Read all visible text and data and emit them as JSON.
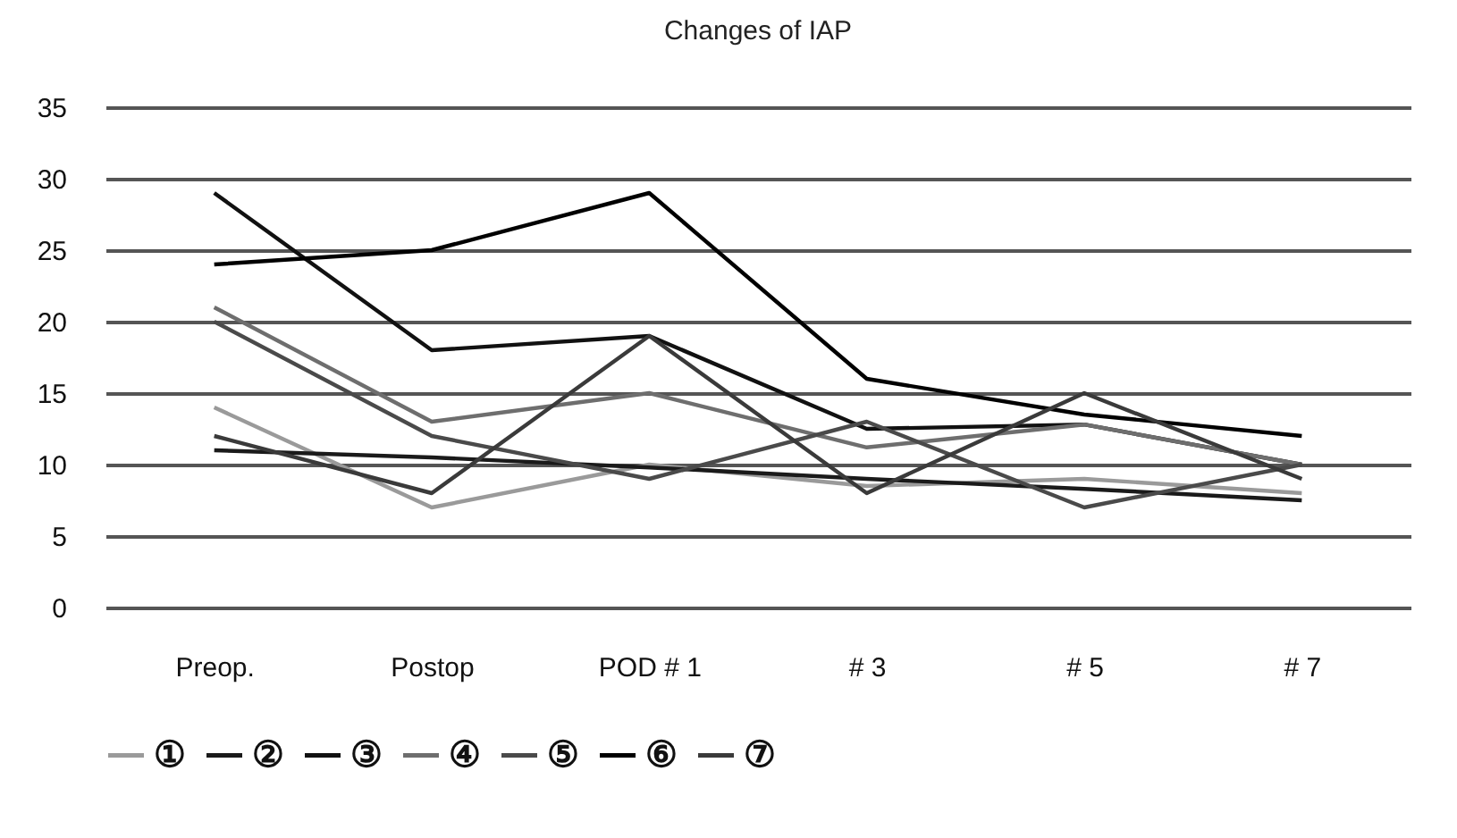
{
  "chart_data": {
    "type": "line",
    "title": "Changes of IAP",
    "categories": [
      "Preop.",
      "Postop",
      "POD # 1",
      "# 3",
      "# 5",
      "# 7"
    ],
    "series": [
      {
        "name": "①",
        "color": "#9a9a9a",
        "values": [
          14,
          7,
          10,
          8.5,
          9,
          8
        ]
      },
      {
        "name": "②",
        "color": "#1a1a1a",
        "values": [
          11,
          10.5,
          9.8,
          9,
          8.3,
          7.5
        ]
      },
      {
        "name": "③",
        "color": "#111111",
        "values": [
          29,
          18,
          19,
          12.5,
          12.8,
          10
        ]
      },
      {
        "name": "④",
        "color": "#6e6e6e",
        "values": [
          21,
          13,
          15,
          11.2,
          12.8,
          10
        ]
      },
      {
        "name": "⑤",
        "color": "#4a4a4a",
        "values": [
          20,
          12,
          9,
          13,
          7,
          10
        ]
      },
      {
        "name": "⑥",
        "color": "#000000",
        "values": [
          24,
          25,
          29,
          16,
          13.5,
          12
        ]
      },
      {
        "name": "⑦",
        "color": "#3a3a3a",
        "values": [
          12,
          8,
          19,
          8,
          15,
          9
        ]
      }
    ],
    "ylim": [
      0,
      35
    ],
    "yticks": [
      0,
      5,
      10,
      15,
      20,
      25,
      30,
      35
    ],
    "grid": "y",
    "legend": "bottom",
    "marker": "none",
    "line_style": "solid"
  }
}
